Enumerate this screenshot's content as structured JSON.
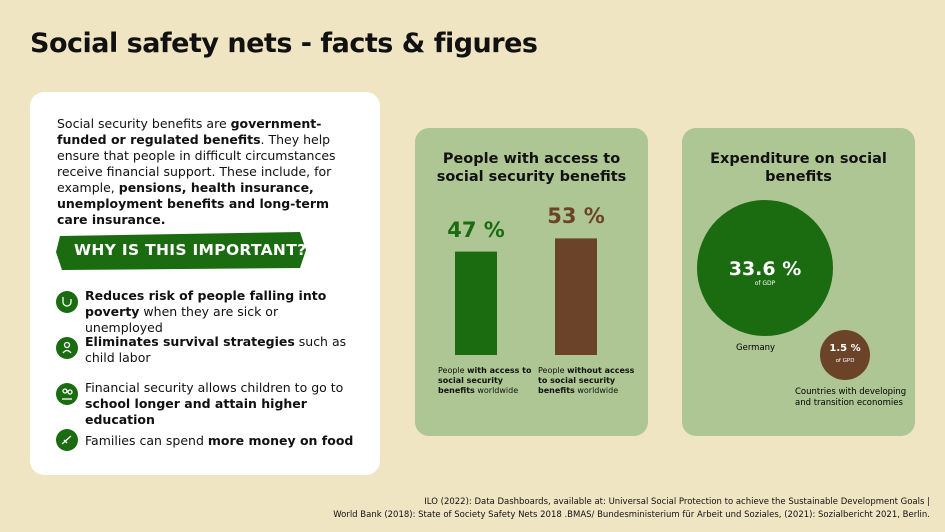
{
  "header": {
    "title": "Social safety nets - facts & figures"
  },
  "intro": [
    {
      "text": "Social security benefits are ",
      "bold": false
    },
    {
      "text": "government-funded or regulated benefits",
      "bold": true
    },
    {
      "text": ". They help ensure that people in difficult circumstances receive financial support. These include, for example, ",
      "bold": false
    },
    {
      "text": "pensions, health insurance, unemployment benefits and long-term care insurance.",
      "bold": true
    }
  ],
  "importance": {
    "heading": "WHY IS THIS IMPORTANT?",
    "items": [
      [
        {
          "text": "Reduces risk of people falling into poverty",
          "bold": true
        },
        {
          "text": " when they are sick or unemployed",
          "bold": false
        }
      ],
      [
        {
          "text": "Eliminates survival strategies",
          "bold": true
        },
        {
          "text": " such as child labor",
          "bold": false
        }
      ],
      [
        {
          "text": "Financial security allows children to go to ",
          "bold": false
        },
        {
          "text": "school longer and attain higher education",
          "bold": true
        }
      ],
      [
        {
          "text": "Families can spend ",
          "bold": false
        },
        {
          "text": "more money on food",
          "bold": true
        }
      ]
    ]
  },
  "access": {
    "title": "People with access to social security benefits",
    "bars": [
      {
        "value": 47,
        "label": "47 %",
        "color": "#1b6b10",
        "caption": [
          {
            "text": "People ",
            "bold": false
          },
          {
            "text": "with access to social security benefits",
            "bold": true
          },
          {
            "text": " worldwide",
            "bold": false
          }
        ]
      },
      {
        "value": 53,
        "label": "53 %",
        "color": "#6b4328",
        "caption": [
          {
            "text": "People ",
            "bold": false
          },
          {
            "text": "without access to social security benefits",
            "bold": true
          },
          {
            "text": " worldwide",
            "bold": false
          }
        ]
      }
    ]
  },
  "expenditure": {
    "title": "Expenditure on social benefits",
    "germany": {
      "value": "33.6 %",
      "unit": "of GDP",
      "label": "Germany"
    },
    "developing": {
      "value": "1.5 %",
      "unit": "of GPD",
      "label": "Countries with developing and transition economies"
    }
  },
  "sources": [
    "ILO (2022): Data Dashboards, available at: Universal Social Protection to achieve the Sustainable Development Goals |",
    "World Bank (2018): State of Society Safety Nets 2018 .BMAS/ Bundesministerium für Arbeit und Soziales, (2021): Sozialbericht 2021, Berlin."
  ]
}
